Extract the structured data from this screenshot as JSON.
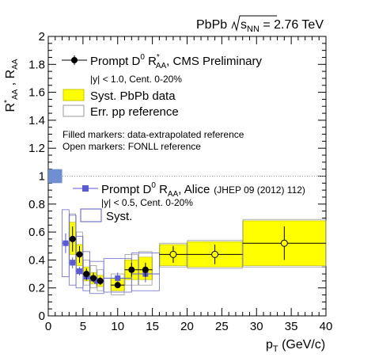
{
  "header": {
    "collision": "PbPb",
    "sqrt_s": "s",
    "sqrt_sub": "NN",
    "energy": " = 2.76 TeV"
  },
  "axes": {
    "ylabel_r": "R",
    "ylabel_star": "*",
    "ylabel_sub": "AA",
    "ylabel_sep": " , R",
    "ylabel_sub2": "AA",
    "xlabel_p": "p",
    "xlabel_sub": "T",
    "xlabel_unit": " (GeV/c)"
  },
  "legend_cms": {
    "label_a": "Prompt D",
    "label_sup": "0",
    "label_b": " R",
    "label_star": "*",
    "label_sub": "AA",
    "label_c": ", CMS Preliminary",
    "selection": "|y| < 1.0, Cent. 0-20%",
    "syst_label": "Syst. PbPb data",
    "err_label": "Err. pp reference"
  },
  "notes": {
    "line1": "Filled markers: data-extrapolated reference",
    "line2": "Open markers: FONLL reference"
  },
  "legend_alice": {
    "label_a": "Prompt D",
    "label_sup": "0",
    "label_b": " R",
    "label_sub": "AA",
    "label_c": ", Alice",
    "ref": "(JHEP 09 (2012) 112)",
    "selection": "|y| < 0.5, Cent. 0-20%",
    "syst_label": "Syst."
  },
  "colors": {
    "cms_syst_fill": "#ffff00",
    "cms_syst_edge": "#c9c900",
    "pp_ref_box": "#9a9a9a",
    "alice_marker": "#5a5ad2",
    "alice_box": "#6a6ad0",
    "norm_box": "#6f8fd0",
    "unity_line": "#999999"
  },
  "chart_data": {
    "type": "scatter",
    "xlim": [
      0,
      40
    ],
    "ylim": [
      0,
      2
    ],
    "x_ticks": [
      "0",
      "5",
      "10",
      "15",
      "20",
      "25",
      "30",
      "35",
      "40"
    ],
    "y_ticks": [
      "0",
      "0.2",
      "0.4",
      "0.6",
      "0.8",
      "1",
      "1.2",
      "1.4",
      "1.6",
      "1.8",
      "2"
    ],
    "reference_line": 1,
    "normalization_box": {
      "x": [
        0,
        2
      ],
      "y": [
        0.95,
        1.05
      ]
    },
    "series": [
      {
        "name": "CMS filled",
        "style": "filled",
        "points": [
          {
            "x": 3.5,
            "y": 0.55,
            "xlo": 3.0,
            "xhi": 4.0,
            "ylo": 0.46,
            "yhi": 0.64,
            "slo": 0.44,
            "shi": 0.67,
            "rlo": 0.4,
            "rhi": 0.73
          },
          {
            "x": 4.5,
            "y": 0.44,
            "xlo": 4.0,
            "xhi": 5.0,
            "ylo": 0.38,
            "yhi": 0.5,
            "slo": 0.36,
            "shi": 0.51,
            "rlo": 0.3,
            "rhi": 0.6
          },
          {
            "x": 5.5,
            "y": 0.3,
            "xlo": 5.0,
            "xhi": 6.0,
            "ylo": 0.26,
            "yhi": 0.34,
            "slo": 0.25,
            "shi": 0.35,
            "rlo": 0.22,
            "rhi": 0.4
          },
          {
            "x": 6.5,
            "y": 0.27,
            "xlo": 6.0,
            "xhi": 7.0,
            "ylo": 0.24,
            "yhi": 0.31,
            "slo": 0.23,
            "shi": 0.31,
            "rlo": 0.2,
            "rhi": 0.36
          },
          {
            "x": 7.5,
            "y": 0.25,
            "xlo": 7.0,
            "xhi": 8.0,
            "ylo": 0.22,
            "yhi": 0.28,
            "slo": 0.21,
            "shi": 0.29,
            "rlo": 0.18,
            "rhi": 0.33
          },
          {
            "x": 10.0,
            "y": 0.22,
            "xlo": 9.0,
            "xhi": 11.0,
            "ylo": 0.2,
            "yhi": 0.24,
            "slo": 0.18,
            "shi": 0.27,
            "rlo": 0.15,
            "rhi": 0.3
          },
          {
            "x": 12.0,
            "y": 0.33,
            "xlo": 11.0,
            "xhi": 13.0,
            "ylo": 0.28,
            "yhi": 0.38,
            "slo": 0.26,
            "shi": 0.4,
            "rlo": 0.22,
            "rhi": 0.44
          },
          {
            "x": 14.0,
            "y": 0.33,
            "xlo": 13.0,
            "xhi": 15.0,
            "ylo": 0.28,
            "yhi": 0.38,
            "slo": 0.26,
            "shi": 0.42,
            "rlo": 0.22,
            "rhi": 0.46
          }
        ]
      },
      {
        "name": "CMS open",
        "style": "open",
        "points": [
          {
            "x": 18.0,
            "y": 0.44,
            "xlo": 16.0,
            "xhi": 20.0,
            "ylo": 0.38,
            "yhi": 0.5,
            "slo": 0.36,
            "shi": 0.51,
            "rlo": 0.35,
            "rhi": 0.52
          },
          {
            "x": 24.0,
            "y": 0.44,
            "xlo": 20.0,
            "xhi": 28.0,
            "ylo": 0.37,
            "yhi": 0.51,
            "slo": 0.35,
            "shi": 0.53,
            "rlo": 0.34,
            "rhi": 0.54
          },
          {
            "x": 34.0,
            "y": 0.52,
            "xlo": 28.0,
            "xhi": 40.0,
            "ylo": 0.4,
            "yhi": 0.64,
            "slo": 0.36,
            "shi": 0.68,
            "rlo": 0.35,
            "rhi": 0.69
          }
        ]
      },
      {
        "name": "Alice",
        "style": "square",
        "points": [
          {
            "x": 2.5,
            "y": 0.52,
            "xlo": 2.0,
            "xhi": 3.0,
            "ylo": 0.45,
            "yhi": 0.59,
            "slo": 0.28,
            "shi": 0.76
          },
          {
            "x": 3.5,
            "y": 0.38,
            "xlo": 3.0,
            "xhi": 4.0,
            "ylo": 0.34,
            "yhi": 0.42,
            "slo": 0.22,
            "shi": 0.72
          },
          {
            "x": 4.5,
            "y": 0.32,
            "xlo": 4.0,
            "xhi": 5.0,
            "ylo": 0.29,
            "yhi": 0.35,
            "slo": 0.2,
            "shi": 0.57
          },
          {
            "x": 5.5,
            "y": 0.28,
            "xlo": 5.0,
            "xhi": 6.0,
            "ylo": 0.25,
            "yhi": 0.31,
            "slo": 0.18,
            "shi": 0.46
          },
          {
            "x": 7.0,
            "y": 0.25,
            "xlo": 6.0,
            "xhi": 8.0,
            "ylo": 0.22,
            "yhi": 0.28,
            "slo": 0.16,
            "shi": 0.39
          },
          {
            "x": 10.0,
            "y": 0.27,
            "xlo": 8.0,
            "xhi": 12.0,
            "ylo": 0.23,
            "yhi": 0.31,
            "slo": 0.17,
            "shi": 0.41
          },
          {
            "x": 14.0,
            "y": 0.3,
            "xlo": 12.0,
            "xhi": 16.0,
            "ylo": 0.24,
            "yhi": 0.36,
            "slo": 0.18,
            "shi": 0.45
          }
        ]
      }
    ]
  }
}
